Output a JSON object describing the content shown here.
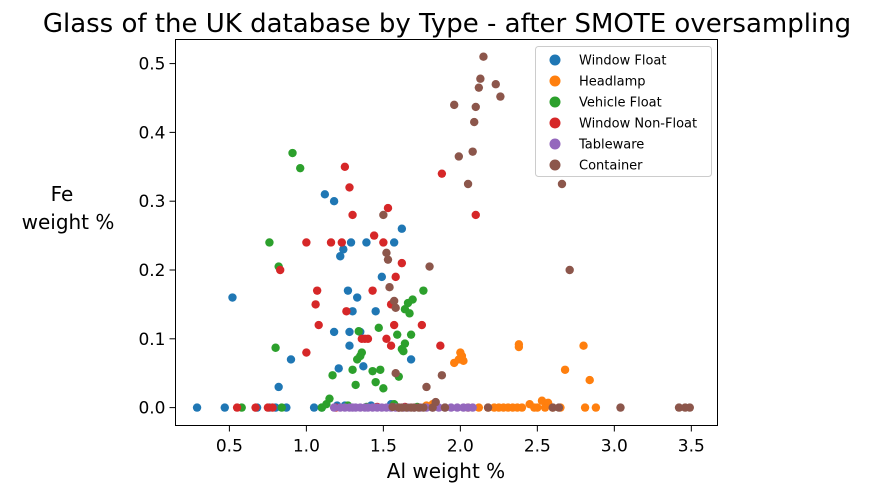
{
  "chart_data": {
    "type": "scatter",
    "title": "Glass of the UK database by Type - after SMOTE oversampling",
    "xlabel": "Al weight %",
    "ylabel_line1": "Fe",
    "ylabel_line2": "weight %",
    "xlim": [
      0.15,
      3.67
    ],
    "ylim": [
      -0.026,
      0.535
    ],
    "xticks": [
      0.5,
      1.0,
      1.5,
      2.0,
      2.5,
      3.0,
      3.5
    ],
    "xtick_labels": [
      "0.5",
      "1.0",
      "1.5",
      "2.0",
      "2.5",
      "3.0",
      "3.5"
    ],
    "yticks": [
      0.0,
      0.1,
      0.2,
      0.3,
      0.4,
      0.5
    ],
    "ytick_labels": [
      "0.0",
      "0.1",
      "0.2",
      "0.3",
      "0.4",
      "0.5"
    ],
    "grid": false,
    "legend_position": "top-right",
    "series": [
      {
        "name": "Window Float",
        "color": "#1f77b4",
        "points": [
          [
            0.29,
            0
          ],
          [
            0.47,
            0
          ],
          [
            0.52,
            0.16
          ],
          [
            0.68,
            0
          ],
          [
            0.76,
            0
          ],
          [
            0.8,
            0
          ],
          [
            0.82,
            0.03
          ],
          [
            0.87,
            0
          ],
          [
            0.9,
            0.07
          ],
          [
            1.05,
            0
          ],
          [
            1.1,
            0
          ],
          [
            1.12,
            0.31
          ],
          [
            1.18,
            0.11
          ],
          [
            1.18,
            0.3
          ],
          [
            1.21,
            0.057
          ],
          [
            1.22,
            0.22
          ],
          [
            1.24,
            0.23
          ],
          [
            1.27,
            0.17
          ],
          [
            1.28,
            0.11
          ],
          [
            1.28,
            0.09
          ],
          [
            1.29,
            0.24
          ],
          [
            1.3,
            0.14
          ],
          [
            1.33,
            0.16
          ],
          [
            1.35,
            0.11
          ],
          [
            1.37,
            0.06
          ],
          [
            1.39,
            0.24
          ],
          [
            1.45,
            0.14
          ],
          [
            1.49,
            0.19
          ],
          [
            1.55,
            0.005
          ],
          [
            1.57,
            0.24
          ],
          [
            1.62,
            0.26
          ],
          [
            1.68,
            0.07
          ],
          [
            1.2,
            0.003
          ],
          [
            1.25,
            0.003
          ],
          [
            1.42,
            0.003
          ]
        ]
      },
      {
        "name": "Headlamp",
        "color": "#ff7f0e",
        "points": [
          [
            1.78,
            0.003
          ],
          [
            1.82,
            0.005
          ],
          [
            1.96,
            0.065
          ],
          [
            1.99,
            0.07
          ],
          [
            2.0,
            0.08
          ],
          [
            2.01,
            0.075
          ],
          [
            2.02,
            0.068
          ],
          [
            2.05,
            0
          ],
          [
            2.12,
            0
          ],
          [
            2.18,
            0
          ],
          [
            2.22,
            0
          ],
          [
            2.25,
            0
          ],
          [
            2.28,
            0
          ],
          [
            2.31,
            0
          ],
          [
            2.34,
            0
          ],
          [
            2.37,
            0
          ],
          [
            2.38,
            0.088
          ],
          [
            2.38,
            0.092
          ],
          [
            2.4,
            0
          ],
          [
            2.45,
            0.005
          ],
          [
            2.48,
            0
          ],
          [
            2.5,
            0
          ],
          [
            2.53,
            0.01
          ],
          [
            2.55,
            0
          ],
          [
            2.57,
            0.007
          ],
          [
            2.6,
            0
          ],
          [
            2.65,
            0
          ],
          [
            2.68,
            0.055
          ],
          [
            2.8,
            0.09
          ],
          [
            2.81,
            0
          ],
          [
            2.84,
            0.04
          ],
          [
            2.88,
            0
          ]
        ]
      },
      {
        "name": "Vehicle Float",
        "color": "#2ca02c",
        "points": [
          [
            0.58,
            0
          ],
          [
            0.76,
            0.24
          ],
          [
            0.8,
            0.087
          ],
          [
            0.82,
            0.205
          ],
          [
            0.84,
            0
          ],
          [
            0.91,
            0.37
          ],
          [
            0.96,
            0.348
          ],
          [
            1.1,
            0
          ],
          [
            1.13,
            0.005
          ],
          [
            1.15,
            0.013
          ],
          [
            1.17,
            0.047
          ],
          [
            1.27,
            0.003
          ],
          [
            1.3,
            0.055
          ],
          [
            1.32,
            0.033
          ],
          [
            1.33,
            0.07
          ],
          [
            1.34,
            0.111
          ],
          [
            1.35,
            0.075
          ],
          [
            1.36,
            0.08
          ],
          [
            1.39,
            0.001
          ],
          [
            1.43,
            0.053
          ],
          [
            1.45,
            0.037
          ],
          [
            1.47,
            0.116
          ],
          [
            1.48,
            0.055
          ],
          [
            1.5,
            0.028
          ],
          [
            1.57,
            0.005
          ],
          [
            1.59,
            0.106
          ],
          [
            1.6,
            0.045
          ],
          [
            1.62,
            0.085
          ],
          [
            1.63,
            0.082
          ],
          [
            1.64,
            0.093
          ],
          [
            1.64,
            0.143
          ],
          [
            1.66,
            0.152
          ],
          [
            1.67,
            0.137
          ],
          [
            1.68,
            0.106
          ],
          [
            1.69,
            0.157
          ],
          [
            1.72,
            0.001
          ],
          [
            1.76,
            0.17
          ]
        ]
      },
      {
        "name": "Window Non-Float",
        "color": "#d62728",
        "points": [
          [
            0.55,
            0
          ],
          [
            0.67,
            0
          ],
          [
            0.75,
            0
          ],
          [
            0.78,
            0
          ],
          [
            0.83,
            0.2
          ],
          [
            1.0,
            0.24
          ],
          [
            1.0,
            0.08
          ],
          [
            1.06,
            0.15
          ],
          [
            1.07,
            0.17
          ],
          [
            1.08,
            0.12
          ],
          [
            1.16,
            0.24
          ],
          [
            1.19,
            0
          ],
          [
            1.23,
            0.24
          ],
          [
            1.25,
            0.35
          ],
          [
            1.26,
            0.14
          ],
          [
            1.28,
            0.32
          ],
          [
            1.3,
            0.28
          ],
          [
            1.36,
            0.1
          ],
          [
            1.38,
            0.1
          ],
          [
            1.4,
            0.1
          ],
          [
            1.43,
            0.17
          ],
          [
            1.44,
            0.25
          ],
          [
            1.5,
            0.24
          ],
          [
            1.52,
            0.1
          ],
          [
            1.53,
            0.29
          ],
          [
            1.55,
            0.15
          ],
          [
            1.57,
            0.12
          ],
          [
            1.58,
            0.19
          ],
          [
            1.6,
            0
          ],
          [
            1.62,
            0.21
          ],
          [
            1.75,
            0.12
          ],
          [
            1.87,
            0.09
          ],
          [
            1.88,
            0.34
          ],
          [
            2.1,
            0.28
          ],
          [
            1.55,
            0.09
          ],
          [
            1.46,
            0.001
          ],
          [
            1.64,
            0.001
          ]
        ]
      },
      {
        "name": "Tableware",
        "color": "#9467bd",
        "points": [
          [
            1.18,
            0
          ],
          [
            1.22,
            0
          ],
          [
            1.25,
            0
          ],
          [
            1.28,
            0
          ],
          [
            1.3,
            0
          ],
          [
            1.32,
            0
          ],
          [
            1.35,
            0
          ],
          [
            1.38,
            0
          ],
          [
            1.4,
            0
          ],
          [
            1.43,
            0
          ],
          [
            1.46,
            0
          ],
          [
            1.49,
            0
          ],
          [
            1.52,
            0
          ],
          [
            1.55,
            0
          ],
          [
            1.58,
            0
          ],
          [
            1.6,
            0
          ],
          [
            1.63,
            0
          ],
          [
            1.66,
            0
          ],
          [
            1.7,
            0
          ],
          [
            1.74,
            0
          ],
          [
            1.78,
            0
          ],
          [
            1.82,
            0
          ],
          [
            1.86,
            0
          ],
          [
            1.9,
            0
          ],
          [
            1.94,
            0
          ],
          [
            1.98,
            0
          ],
          [
            2.02,
            0
          ],
          [
            2.05,
            0
          ],
          [
            2.08,
            0
          ]
        ]
      },
      {
        "name": "Container",
        "color": "#8c564b",
        "points": [
          [
            1.5,
            0.28
          ],
          [
            1.52,
            0.225
          ],
          [
            1.53,
            0.215
          ],
          [
            1.54,
            0.175
          ],
          [
            1.56,
            0.001
          ],
          [
            1.57,
            0.155
          ],
          [
            1.58,
            0.05
          ],
          [
            1.58,
            0.145
          ],
          [
            1.6,
            0
          ],
          [
            1.62,
            0
          ],
          [
            1.65,
            0
          ],
          [
            1.68,
            0
          ],
          [
            1.7,
            0
          ],
          [
            1.73,
            0
          ],
          [
            1.76,
            0
          ],
          [
            1.78,
            0.03
          ],
          [
            1.8,
            0.205
          ],
          [
            1.82,
            0
          ],
          [
            1.84,
            0.008
          ],
          [
            1.88,
            0.047
          ],
          [
            1.9,
            0
          ],
          [
            1.96,
            0.44
          ],
          [
            1.99,
            0.365
          ],
          [
            2.05,
            0.325
          ],
          [
            2.08,
            0.372
          ],
          [
            2.09,
            0.415
          ],
          [
            2.1,
            0.437
          ],
          [
            2.12,
            0.465
          ],
          [
            2.13,
            0.478
          ],
          [
            2.15,
            0.51
          ],
          [
            2.18,
            0
          ],
          [
            2.23,
            0.47
          ],
          [
            2.26,
            0.452
          ],
          [
            2.6,
            0
          ],
          [
            2.64,
            0
          ],
          [
            2.66,
            0.325
          ],
          [
            2.71,
            0.2
          ],
          [
            3.04,
            0
          ],
          [
            3.42,
            0
          ],
          [
            3.46,
            0
          ],
          [
            3.49,
            0
          ]
        ]
      }
    ]
  }
}
